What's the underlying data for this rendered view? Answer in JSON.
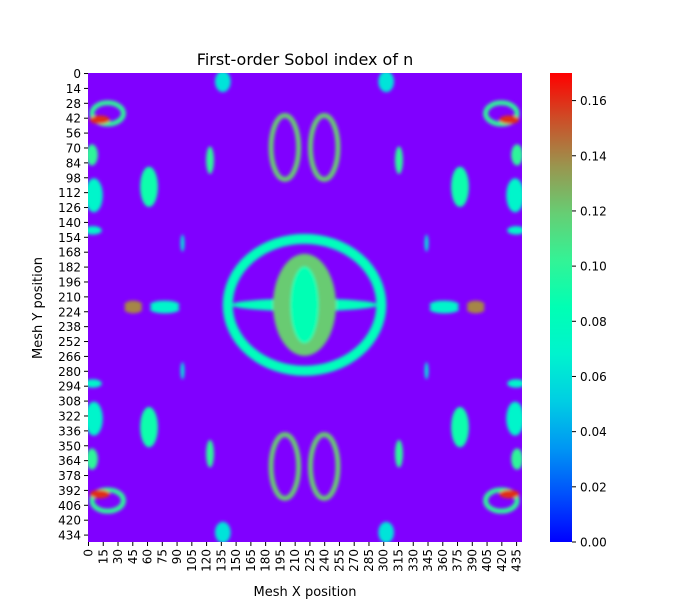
{
  "chart_data": {
    "type": "heatmap",
    "title": "First-order Sobol index of n",
    "xlabel": "Mesh X position",
    "ylabel": "Mesh Y position",
    "x_ticks": [
      0,
      15,
      30,
      45,
      60,
      75,
      90,
      105,
      120,
      135,
      150,
      165,
      180,
      195,
      210,
      225,
      240,
      255,
      270,
      285,
      300,
      315,
      330,
      345,
      360,
      375,
      390,
      405,
      420,
      435
    ],
    "y_ticks": [
      0,
      14,
      28,
      42,
      56,
      70,
      84,
      98,
      112,
      126,
      140,
      154,
      168,
      182,
      196,
      210,
      224,
      238,
      252,
      266,
      280,
      294,
      308,
      322,
      336,
      350,
      364,
      378,
      392,
      406,
      420,
      434
    ],
    "x_range": [
      0,
      441
    ],
    "y_range": [
      0,
      441
    ],
    "colorbar": {
      "colormap": "rainbow",
      "range": [
        0,
        0.17
      ],
      "ticks": [
        0.0,
        0.02,
        0.04,
        0.06,
        0.08,
        0.1,
        0.12,
        0.14,
        0.16
      ],
      "tick_labels": [
        "0.00",
        "0.02",
        "0.04",
        "0.06",
        "0.08",
        "0.10",
        "0.12",
        "0.14",
        "0.16"
      ]
    },
    "background_value": 0.0,
    "symmetry": "mirror about x=220 and y=220",
    "features_upper_left_quadrant": [
      {
        "shape": "arc",
        "cx": 20,
        "cy": 38,
        "rx": 16,
        "ry": 10,
        "value": 0.1
      },
      {
        "shape": "blob",
        "cx": 12,
        "cy": 44,
        "rx": 10,
        "ry": 4,
        "value": 0.16
      },
      {
        "shape": "blob",
        "cx": 4,
        "cy": 77,
        "rx": 6,
        "ry": 10,
        "value": 0.1
      },
      {
        "shape": "blob",
        "cx": 6,
        "cy": 115,
        "rx": 9,
        "ry": 16,
        "value": 0.07
      },
      {
        "shape": "blob",
        "cx": 5,
        "cy": 148,
        "rx": 9,
        "ry": 4,
        "value": 0.07
      },
      {
        "shape": "blob",
        "cx": 62,
        "cy": 107,
        "rx": 9,
        "ry": 19,
        "value": 0.09
      },
      {
        "shape": "blob",
        "cx": 124,
        "cy": 82,
        "rx": 4,
        "ry": 13,
        "value": 0.1
      },
      {
        "shape": "blob",
        "cx": 137,
        "cy": 8,
        "rx": 8,
        "ry": 10,
        "value": 0.06
      },
      {
        "shape": "blob",
        "cx": 96,
        "cy": 160,
        "rx": 2,
        "ry": 8,
        "value": 0.06
      },
      {
        "shape": "blob",
        "cx": 46,
        "cy": 222,
        "rx": 9,
        "ry": 4,
        "value": 0.14
      },
      {
        "shape": "blob",
        "cx": 78,
        "cy": 222,
        "rx": 15,
        "ry": 4,
        "value": 0.07
      },
      {
        "shape": "arc",
        "cx": 200,
        "cy": 70,
        "rx": 14,
        "ry": 30,
        "value": 0.12
      }
    ],
    "central_feature": {
      "outer_ring": {
        "cx": 220,
        "cy": 218,
        "rx": 78,
        "ry": 62,
        "value": 0.08
      },
      "inner_core": {
        "cx": 220,
        "cy": 218,
        "rx": 32,
        "ry": 48,
        "value": 0.12
      }
    }
  }
}
